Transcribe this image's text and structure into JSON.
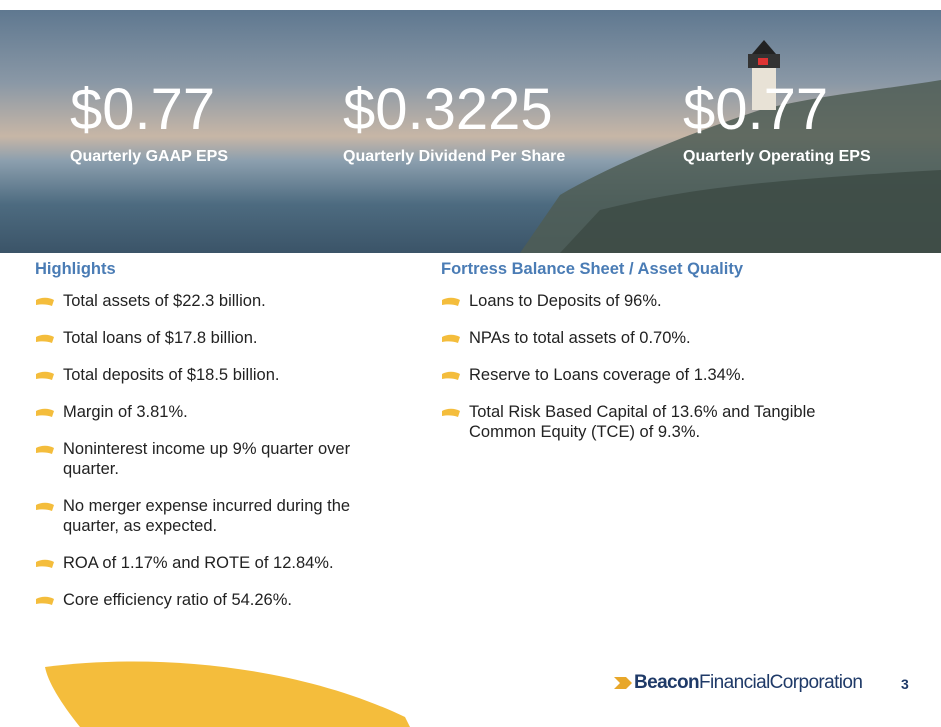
{
  "hero": {
    "metrics": [
      {
        "value": "$0.77",
        "label": "Quarterly GAAP EPS"
      },
      {
        "value": "$0.3225",
        "label": "Quarterly Dividend Per Share"
      },
      {
        "value": "$0.77",
        "label": "Quarterly Operating EPS"
      }
    ]
  },
  "highlights": {
    "title": "Highlights",
    "items": [
      "Total assets of $22.3 billion.",
      "Total loans of $17.8 billion.",
      "Total deposits of $18.5 billion.",
      "Margin of 3.81%.",
      "Noninterest income up 9% quarter over quarter.",
      "No merger expense incurred during the quarter, as expected.",
      "ROA of 1.17% and ROTE of 12.84%.",
      "Core efficiency ratio of 54.26%."
    ]
  },
  "fortress": {
    "title": "Fortress Balance Sheet / Asset Quality",
    "items": [
      "Loans to Deposits of 96%.",
      "NPAs to total assets of 0.70%.",
      "Reserve to Loans coverage of 1.34%.",
      "Total Risk Based Capital of 13.6% and Tangible Common Equity (TCE) of 9.3%."
    ]
  },
  "footer": {
    "logo_bold": "Beacon",
    "logo_rest": "FinancialCorporation",
    "page_number": "3"
  }
}
